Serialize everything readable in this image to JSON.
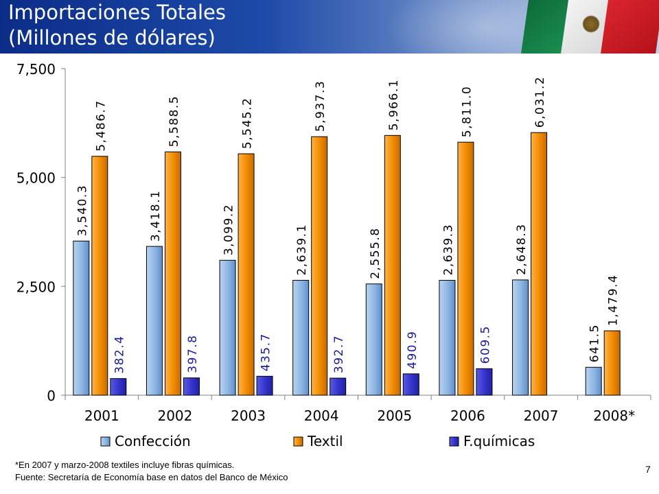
{
  "title": {
    "line1": "Importaciones Totales",
    "line2": "(Millones de dólares)"
  },
  "chart_data": {
    "type": "bar",
    "categories": [
      "2001",
      "2002",
      "2003",
      "2004",
      "2005",
      "2006",
      "2007",
      "2008*"
    ],
    "series": [
      {
        "name": "Confección",
        "values": [
          3540.3,
          3418.1,
          3099.2,
          2639.1,
          2555.8,
          2639.3,
          2648.3,
          641.5
        ],
        "labels": [
          "3,540.3",
          "3,418.1",
          "3,099.2",
          "2,639.1",
          "2,555.8",
          "2,639.3",
          "2,648.3",
          "641.5"
        ],
        "color": "#8db5e2"
      },
      {
        "name": "Textil",
        "values": [
          5486.7,
          5588.5,
          5545.2,
          5937.3,
          5966.1,
          5811.0,
          6031.2,
          1479.4
        ],
        "labels": [
          "5,486.7",
          "5,588.5",
          "5,545.2",
          "5,937.3",
          "5,966.1",
          "5,811.0",
          "6,031.2",
          "1,479.4"
        ],
        "color": "#f08a00"
      },
      {
        "name": "F.químicas",
        "values": [
          382.4,
          397.8,
          435.7,
          392.7,
          490.9,
          609.5,
          null,
          null
        ],
        "labels": [
          "382.4",
          "397.8",
          "435.7",
          "392.7",
          "490.9",
          "609.5",
          null,
          null
        ],
        "color": "#3333cc"
      }
    ],
    "ylim": [
      0,
      7500
    ],
    "yticks": [
      0,
      2500,
      5000,
      7500
    ],
    "ytick_labels": [
      "0",
      "2,500",
      "5,000",
      "7,500"
    ],
    "grid": false,
    "legend": "bottom",
    "xlabel": "",
    "ylabel": ""
  },
  "footnote": {
    "line1": "*En 2007 y marzo-2008 textiles incluye fibras químicas.",
    "line2": "Fuente: Secretaría de Economía base en datos del Banco de México"
  },
  "page_number": "7"
}
